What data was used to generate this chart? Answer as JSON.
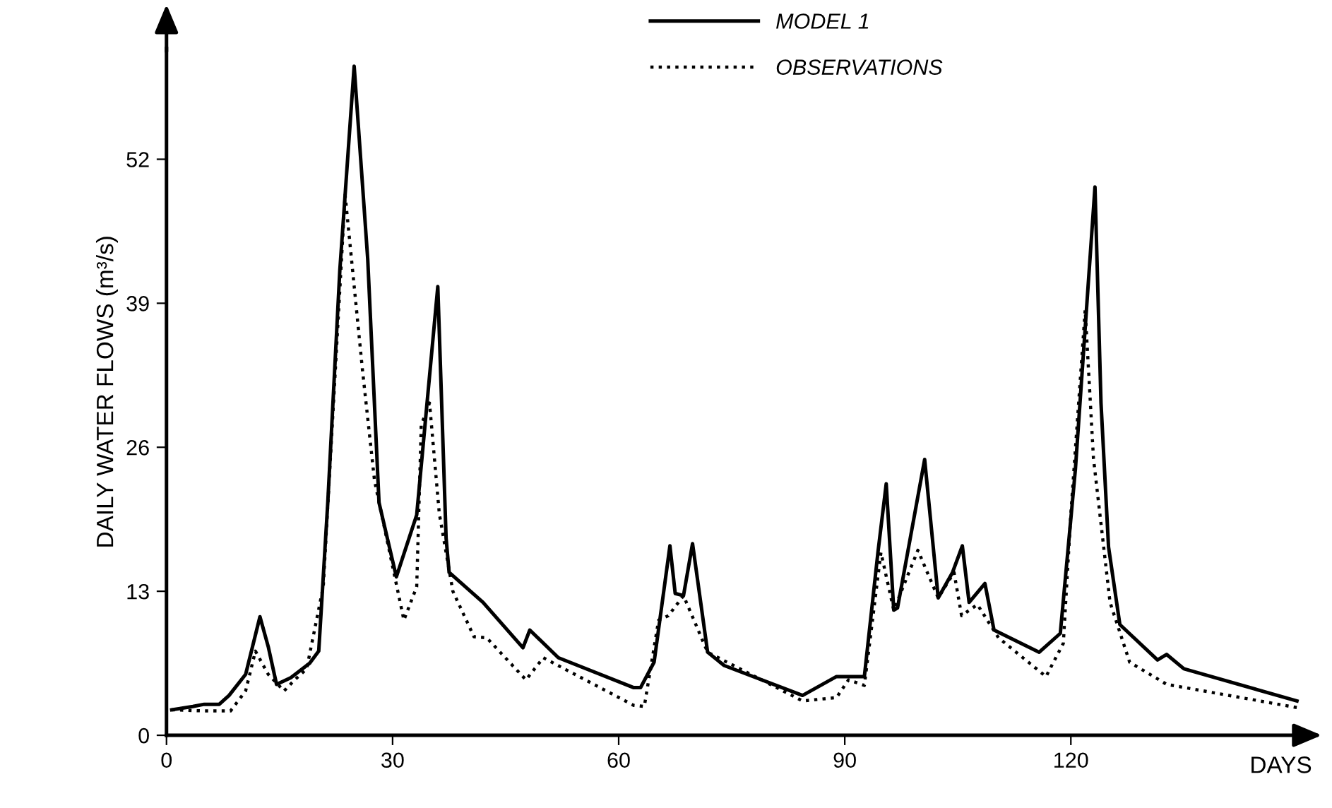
{
  "chart_data": {
    "type": "line",
    "xlabel": "DAYS",
    "ylabel": "DAILY WATER FLOWS (m³/s)",
    "xlim": [
      0,
      152
    ],
    "ylim": [
      0,
      62
    ],
    "xticks": [
      0,
      30,
      60,
      90,
      120
    ],
    "yticks": [
      0,
      13,
      26,
      39,
      52
    ],
    "grid": false,
    "legend": "top",
    "marker": "none",
    "series": [
      {
        "name": "MODEL 1",
        "color": "#000000",
        "line_style": "solid",
        "x": [
          0.7,
          3.5,
          5,
          7,
          8.3,
          10.5,
          12.4,
          13.5,
          14.6,
          16.5,
          19,
          20.2,
          21.4,
          23,
          24.9,
          26.7,
          28.2,
          30.5,
          33.2,
          36,
          37.1,
          37.5,
          42,
          47.3,
          48.2,
          52,
          62,
          62.9,
          64.7,
          66.8,
          67.5,
          68.6,
          69.8,
          71.8,
          74,
          84.4,
          88.9,
          92.6,
          94.4,
          95.5,
          96.5,
          97,
          100.6,
          102.4,
          104.3,
          105.6,
          106.5,
          108.6,
          109.8,
          115.8,
          118.6,
          120.6,
          123.2,
          124,
          125,
          126.5,
          131.5,
          132.7,
          135,
          150
        ],
        "values": [
          2.3,
          2.6,
          2.8,
          2.8,
          3.6,
          5.5,
          10.7,
          8,
          4.6,
          5.2,
          6.5,
          7.6,
          21,
          42,
          60.4,
          43,
          21,
          14.3,
          19.9,
          40.5,
          17.8,
          14.7,
          12,
          7.9,
          9.5,
          7,
          4.3,
          4.3,
          6.6,
          17.1,
          12.8,
          12.6,
          17.3,
          7.5,
          6.3,
          3.6,
          5.3,
          5.3,
          16.5,
          22.7,
          11.3,
          11.5,
          24.9,
          12.4,
          14.7,
          17.1,
          12,
          13.7,
          9.5,
          7.5,
          9.2,
          24,
          49.5,
          30,
          17,
          10,
          6.8,
          7.3,
          6,
          3.1
        ]
      },
      {
        "name": "OBSERVATIONS",
        "color": "#000000",
        "line_style": "dotted",
        "x": [
          0.7,
          5,
          8.5,
          10.5,
          11.8,
          13.5,
          15.6,
          17,
          18.6,
          20.8,
          23.7,
          26,
          27.6,
          31.5,
          33.2,
          33.8,
          34.9,
          36.2,
          38,
          40.8,
          42.5,
          47.7,
          50,
          62,
          63.4,
          65.3,
          66.6,
          68.6,
          71.8,
          84.4,
          88.9,
          90.5,
          92.6,
          94.8,
          96.5,
          99.7,
          102.4,
          104.5,
          105.5,
          107.6,
          110.4,
          116.7,
          119,
          120,
          121.9,
          123,
          125.2,
          127.8,
          132.7,
          150
        ],
        "values": [
          2.3,
          2.2,
          2.2,
          4,
          7.6,
          5.5,
          4,
          5,
          6,
          13.4,
          48.8,
          33,
          23,
          10.4,
          13.4,
          28,
          30,
          20,
          13,
          8.9,
          8.8,
          5,
          7,
          2.7,
          2.6,
          10.4,
          10.8,
          12.6,
          7.5,
          3.1,
          3.4,
          5,
          4.5,
          16.5,
          11.3,
          16.7,
          12.4,
          14.7,
          10.8,
          11.8,
          8.8,
          5.3,
          8.3,
          20,
          38.4,
          25,
          12,
          6.6,
          4.6,
          2.5
        ]
      }
    ]
  }
}
